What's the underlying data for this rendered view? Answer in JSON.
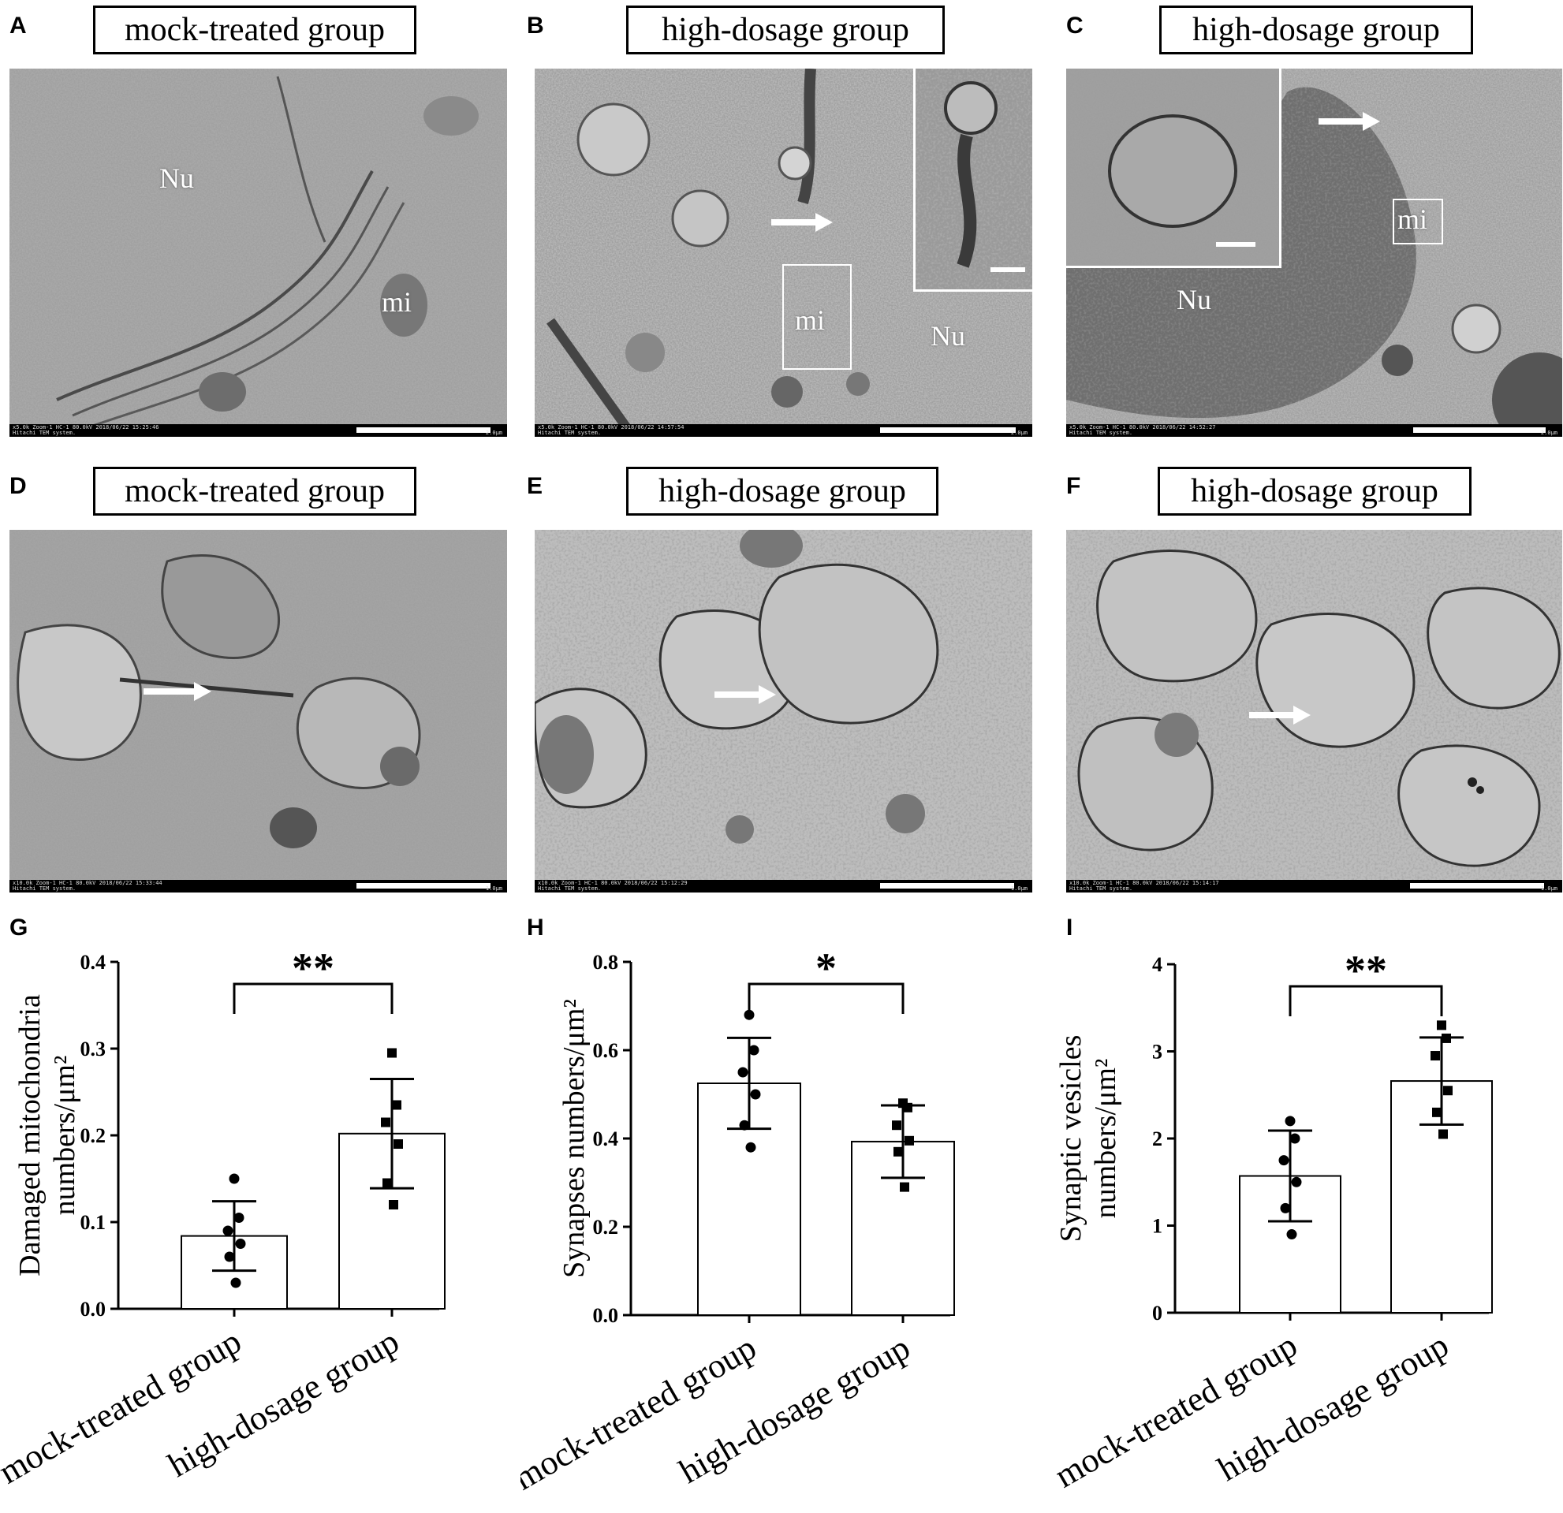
{
  "panels": {
    "A": {
      "letter": "A",
      "group": "mock-treated group",
      "labels": [
        "Nu",
        "mi"
      ],
      "info": "x5.0k Zoom-1 HC-1 80.0kV 2018/06/22 15:25:46\nHitachi TEM system.",
      "scale": "2.0μm"
    },
    "B": {
      "letter": "B",
      "group": "high-dosage group",
      "labels": [
        "mi",
        "Nu"
      ],
      "info": "x5.0k Zoom-1 HC-1 80.0kV 2018/06/22 14:57:54\nHitachi TEM system.",
      "scale": "2.0μm"
    },
    "C": {
      "letter": "C",
      "group": "high-dosage group",
      "labels": [
        "Nu",
        "mi"
      ],
      "info": "x5.0k Zoom-1 HC-1 80.0kV 2018/06/22 14:52:27\nHitachi TEM system.",
      "scale": "2.0μm"
    },
    "D": {
      "letter": "D",
      "group": "mock-treated group",
      "info": "x10.0k Zoom-1 HC-1 80.0kV 2018/06/22 15:33:44\nHitachi TEM system.",
      "scale": "1.0μm"
    },
    "E": {
      "letter": "E",
      "group": "high-dosage group",
      "info": "x10.0k Zoom-1 HC-1 80.0kV 2018/06/22 15:12:29\nHitachi TEM system.",
      "scale": "1.0μm"
    },
    "F": {
      "letter": "F",
      "group": "high-dosage group",
      "info": "x10.0k Zoom-1 HC-1 80.0kV 2018/06/22 15:14:17\nHitachi TEM system.",
      "scale": "1.0μm"
    },
    "G": {
      "letter": "G"
    },
    "H": {
      "letter": "H"
    },
    "I": {
      "letter": "I"
    }
  },
  "chart_data": [
    {
      "type": "bar",
      "panel": "G",
      "categories": [
        "mock-treated group",
        "high-dosage group"
      ],
      "values": [
        0.084,
        0.202
      ],
      "error_sd": [
        0.04,
        0.063
      ],
      "points": [
        [
          0.15,
          0.105,
          0.09,
          0.075,
          0.06,
          0.03
        ],
        [
          0.295,
          0.235,
          0.215,
          0.19,
          0.145,
          0.12
        ]
      ],
      "markers": [
        "circle",
        "square"
      ],
      "ylabel_line1": "Damaged mitochondria",
      "ylabel_line2": "numbers/μm²",
      "ylim": [
        0,
        0.4
      ],
      "yticks": [
        "0.0",
        "0.1",
        "0.2",
        "0.3",
        "0.4"
      ],
      "significance": "**"
    },
    {
      "type": "bar",
      "panel": "H",
      "categories": [
        "mock-treated group",
        "high-dosage group"
      ],
      "values": [
        0.525,
        0.393
      ],
      "error_sd": [
        0.103,
        0.082
      ],
      "points": [
        [
          0.68,
          0.6,
          0.55,
          0.5,
          0.43,
          0.38
        ],
        [
          0.48,
          0.47,
          0.43,
          0.395,
          0.37,
          0.29
        ]
      ],
      "markers": [
        "circle",
        "square"
      ],
      "ylabel_line1": "Synapses numbers/μm²",
      "ylim": [
        0,
        0.8
      ],
      "yticks": [
        "0.0",
        "0.2",
        "0.4",
        "0.6",
        "0.8"
      ],
      "significance": "*"
    },
    {
      "type": "bar",
      "panel": "I",
      "categories": [
        "mock-treated group",
        "high-dosage group"
      ],
      "values": [
        1.57,
        2.66
      ],
      "error_sd": [
        0.52,
        0.5
      ],
      "points": [
        [
          2.2,
          2.0,
          1.75,
          1.5,
          1.2,
          0.9
        ],
        [
          3.3,
          3.15,
          2.95,
          2.55,
          2.3,
          2.05
        ]
      ],
      "markers": [
        "circle",
        "square"
      ],
      "ylabel_line1": "Synaptic vesicles",
      "ylabel_line2": "numbers/μm²",
      "ylim": [
        0,
        4
      ],
      "yticks": [
        "0",
        "1",
        "2",
        "3",
        "4"
      ],
      "significance": "**"
    }
  ]
}
